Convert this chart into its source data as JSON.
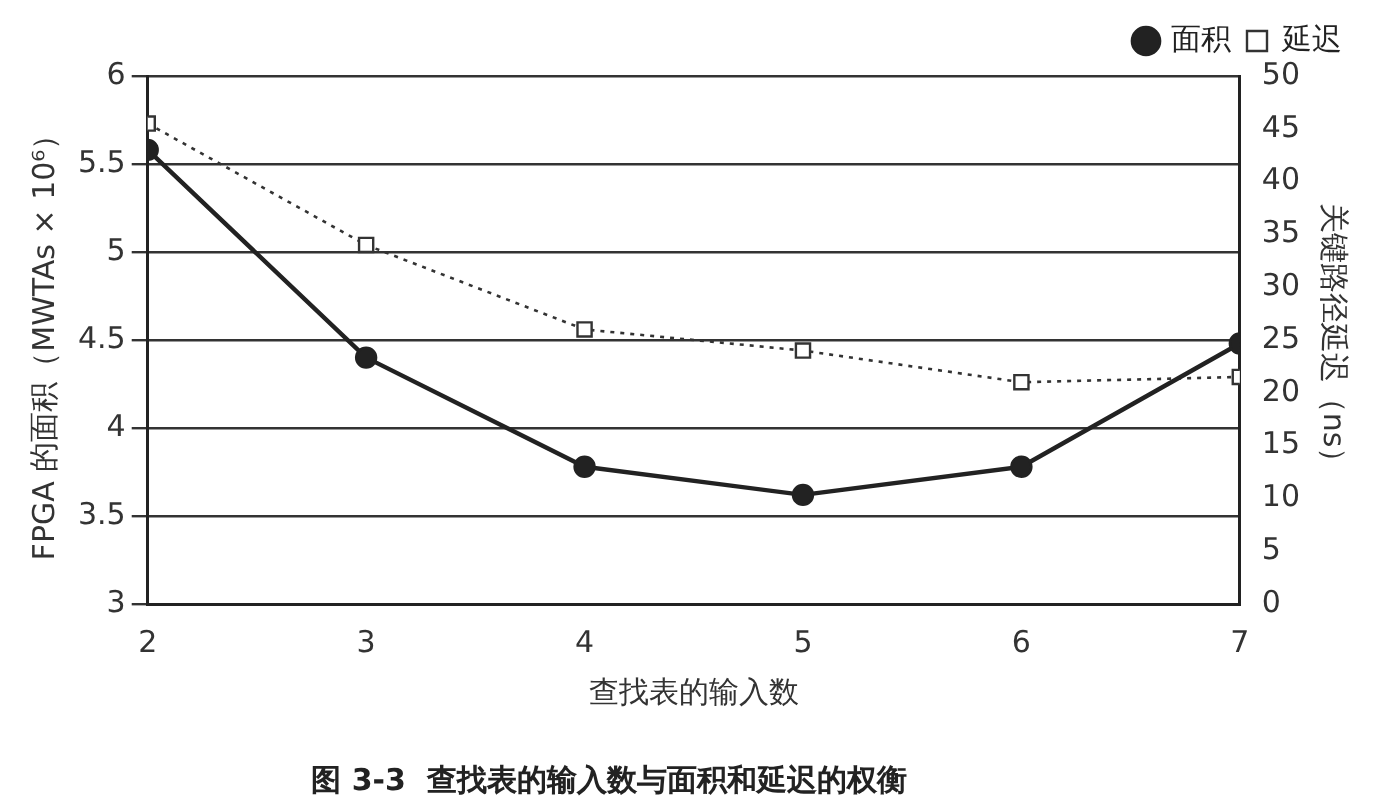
{
  "chart_data": {
    "type": "line",
    "xlabel": "查找表的输入数",
    "ylabel": "FPGA 的面积（MWTAs × 10⁶）",
    "y2label": "关键路径延迟（ns）",
    "x": [
      2,
      3,
      4,
      5,
      6,
      7
    ],
    "xlim": [
      2,
      7
    ],
    "xticks": [
      2,
      3,
      4,
      5,
      6,
      7
    ],
    "ylim": [
      3,
      6
    ],
    "yticks": [
      3,
      3.5,
      4,
      4.5,
      5,
      5.5,
      6
    ],
    "y2lim": [
      0,
      50
    ],
    "y2ticks": [
      0,
      5,
      10,
      15,
      20,
      25,
      30,
      35,
      40,
      45,
      50
    ],
    "grid": "y",
    "legend": "top right",
    "series": [
      {
        "name": "面积",
        "color": "#222222",
        "values": [
          5.58,
          4.4,
          3.78,
          3.62,
          3.78,
          4.48
        ],
        "marker": "circle",
        "line_style": "solid"
      },
      {
        "name": "延迟",
        "color": "#333333",
        "values": [
          45.5,
          34,
          26,
          24,
          21,
          21.5
        ],
        "axis": "y2",
        "marker": "square",
        "line_style": "dotted"
      }
    ],
    "annotations": [
      "图 3-3  查找表的输入数与面积和延迟的权衡"
    ]
  }
}
